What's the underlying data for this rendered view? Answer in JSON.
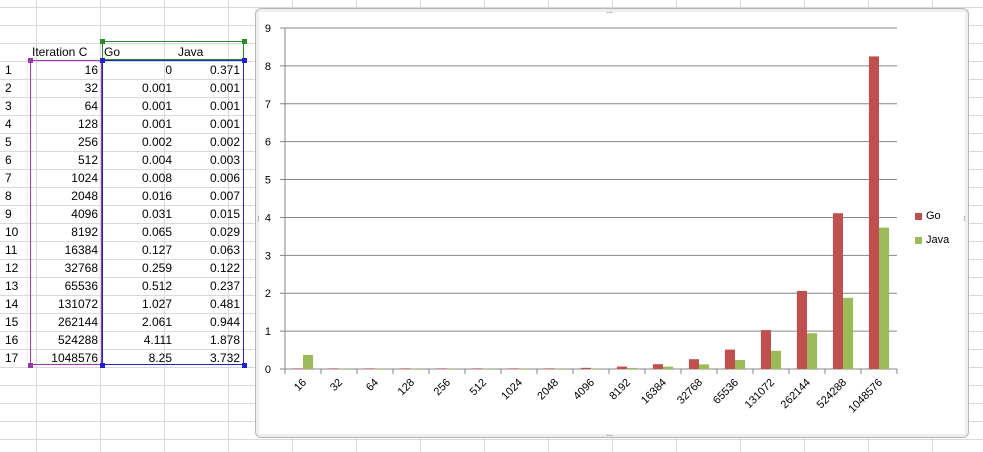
{
  "table": {
    "headers": {
      "iteration": "Iteration C",
      "go": "Go",
      "java": "Java"
    },
    "row_numbers": [
      "1",
      "2",
      "3",
      "4",
      "5",
      "6",
      "7",
      "8",
      "9",
      "10",
      "11",
      "12",
      "13",
      "14",
      "15",
      "16",
      "17"
    ],
    "rows": [
      {
        "iter": "16",
        "go": "0",
        "java": "0.371"
      },
      {
        "iter": "32",
        "go": "0.001",
        "java": "0.001"
      },
      {
        "iter": "64",
        "go": "0.001",
        "java": "0.001"
      },
      {
        "iter": "128",
        "go": "0.001",
        "java": "0.001"
      },
      {
        "iter": "256",
        "go": "0.002",
        "java": "0.002"
      },
      {
        "iter": "512",
        "go": "0.004",
        "java": "0.003"
      },
      {
        "iter": "1024",
        "go": "0.008",
        "java": "0.006"
      },
      {
        "iter": "2048",
        "go": "0.016",
        "java": "0.007"
      },
      {
        "iter": "4096",
        "go": "0.031",
        "java": "0.015"
      },
      {
        "iter": "8192",
        "go": "0.065",
        "java": "0.029"
      },
      {
        "iter": "16384",
        "go": "0.127",
        "java": "0.063"
      },
      {
        "iter": "32768",
        "go": "0.259",
        "java": "0.122"
      },
      {
        "iter": "65536",
        "go": "0.512",
        "java": "0.237"
      },
      {
        "iter": "131072",
        "go": "1.027",
        "java": "0.481"
      },
      {
        "iter": "262144",
        "go": "2.061",
        "java": "0.944"
      },
      {
        "iter": "524288",
        "go": "4.111",
        "java": "1.878"
      },
      {
        "iter": "1048576",
        "go": "8.25",
        "java": "3.732"
      }
    ]
  },
  "chart_data": {
    "type": "bar",
    "categories": [
      "16",
      "32",
      "64",
      "128",
      "256",
      "512",
      "1024",
      "2048",
      "4096",
      "8192",
      "16384",
      "32768",
      "65536",
      "131072",
      "262144",
      "524288",
      "1048576"
    ],
    "series": [
      {
        "name": "Go",
        "color": "#c0504d",
        "values": [
          0,
          0.001,
          0.001,
          0.001,
          0.002,
          0.004,
          0.008,
          0.016,
          0.031,
          0.065,
          0.127,
          0.259,
          0.512,
          1.027,
          2.061,
          4.111,
          8.25
        ]
      },
      {
        "name": "Java",
        "color": "#9bbb59",
        "values": [
          0.371,
          0.001,
          0.001,
          0.001,
          0.002,
          0.003,
          0.006,
          0.007,
          0.015,
          0.029,
          0.063,
          0.122,
          0.237,
          0.481,
          0.944,
          1.878,
          3.732
        ]
      }
    ],
    "title": "",
    "xlabel": "",
    "ylabel": "",
    "ylim": [
      0,
      9
    ],
    "yticks": [
      "0",
      "1",
      "2",
      "3",
      "4",
      "5",
      "6",
      "7",
      "8",
      "9"
    ],
    "grid": true,
    "legend_position": "right"
  },
  "colors": {
    "gridline": "#868686",
    "axis": "#868686"
  }
}
